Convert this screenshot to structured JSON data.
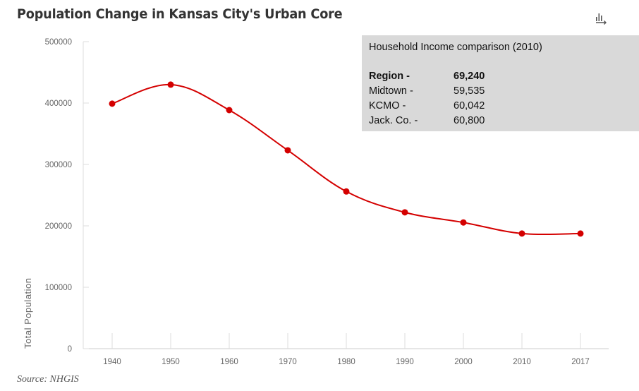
{
  "title": "Population Change in Kansas City's Urban Core",
  "export_icon": "chart-export-icon",
  "infobox": {
    "title": "Household Income comparison (2010)",
    "rows": [
      {
        "label": "Region -",
        "value": "69,240",
        "bold": true
      },
      {
        "label": "Midtown -",
        "value": "59,535",
        "bold": false
      },
      {
        "label": "KCMO -",
        "value": "60,042",
        "bold": false
      },
      {
        "label": "Jack. Co. -",
        "value": "60,800",
        "bold": false
      }
    ]
  },
  "source": "Source: NHGIS",
  "chart_data": {
    "type": "line",
    "title": "Population Change in Kansas City's Urban Core",
    "xlabel": "",
    "ylabel": "Total Population",
    "categories": [
      "1940",
      "1950",
      "1960",
      "1970",
      "1980",
      "1990",
      "2000",
      "2010",
      "2017"
    ],
    "series": [
      {
        "name": "Total Population",
        "values": [
          399000,
          430000,
          388500,
          323000,
          256000,
          222000,
          205500,
          187500,
          187500
        ],
        "color": "#d40000"
      }
    ],
    "ylim": [
      0,
      500000
    ],
    "yticks": [
      "0",
      "100000",
      "200000",
      "300000",
      "400000",
      "500000"
    ],
    "grid": false,
    "legend": "none"
  }
}
